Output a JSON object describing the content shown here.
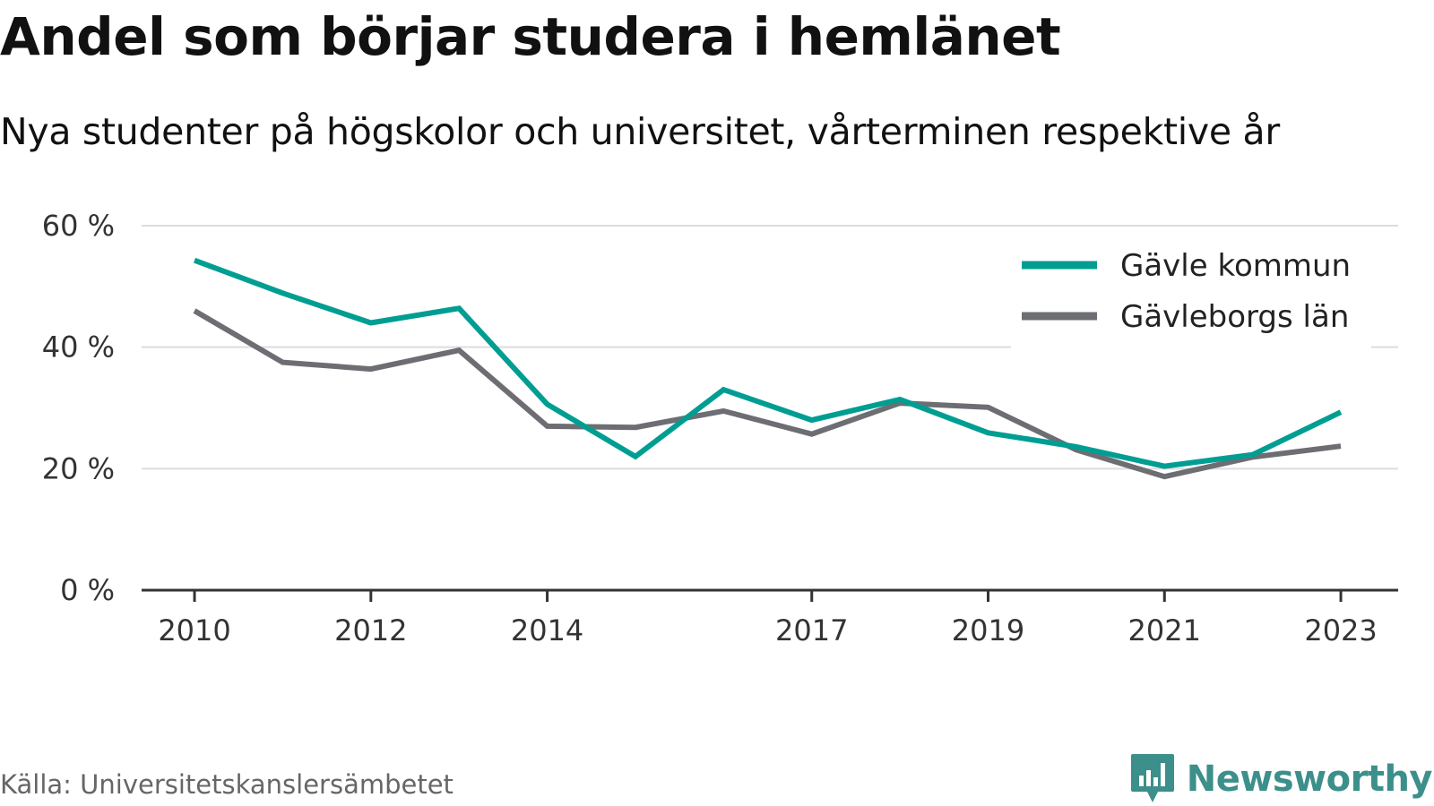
{
  "title": "Andel som börjar studera i hemlänet",
  "subtitle": "Nya studenter på högskolor och universitet, vårterminen respektive år",
  "source": "Källa: Universitetskanslersämbetet",
  "brand": {
    "name": "Newsworthy",
    "icon": "bar-chart-speech-bubble-icon",
    "color": "#3c8f8a"
  },
  "chart_data": {
    "type": "line",
    "x": [
      2010,
      2011,
      2012,
      2013,
      2014,
      2015,
      2016,
      2017,
      2018,
      2019,
      2020,
      2021,
      2022,
      2023
    ],
    "x_tick_labels": [
      "2010",
      "2012",
      "2014",
      "2017",
      "2019",
      "2021",
      "2023"
    ],
    "x_tick_values": [
      2010,
      2012,
      2014,
      2017,
      2019,
      2021,
      2023
    ],
    "xlim": [
      2009.4,
      2023.65
    ],
    "ylim": [
      0,
      60
    ],
    "y_ticks": [
      0,
      20,
      40,
      60
    ],
    "y_tick_labels": [
      "0 %",
      "20 %",
      "40 %",
      "60 %"
    ],
    "grid": true,
    "legend_position": "top-right",
    "series": [
      {
        "name": "Gävle kommun",
        "color": "#009e92",
        "values": [
          54.3,
          48.9,
          44.0,
          46.4,
          30.6,
          22.0,
          33.0,
          28.0,
          31.4,
          25.9,
          23.6,
          20.4,
          22.3,
          29.3
        ]
      },
      {
        "name": "Gävleborgs län",
        "color": "#6d6e73",
        "values": [
          46.0,
          37.5,
          36.4,
          39.5,
          27.0,
          26.8,
          29.5,
          25.7,
          30.8,
          30.1,
          23.1,
          18.7,
          21.9,
          23.7
        ]
      }
    ]
  }
}
